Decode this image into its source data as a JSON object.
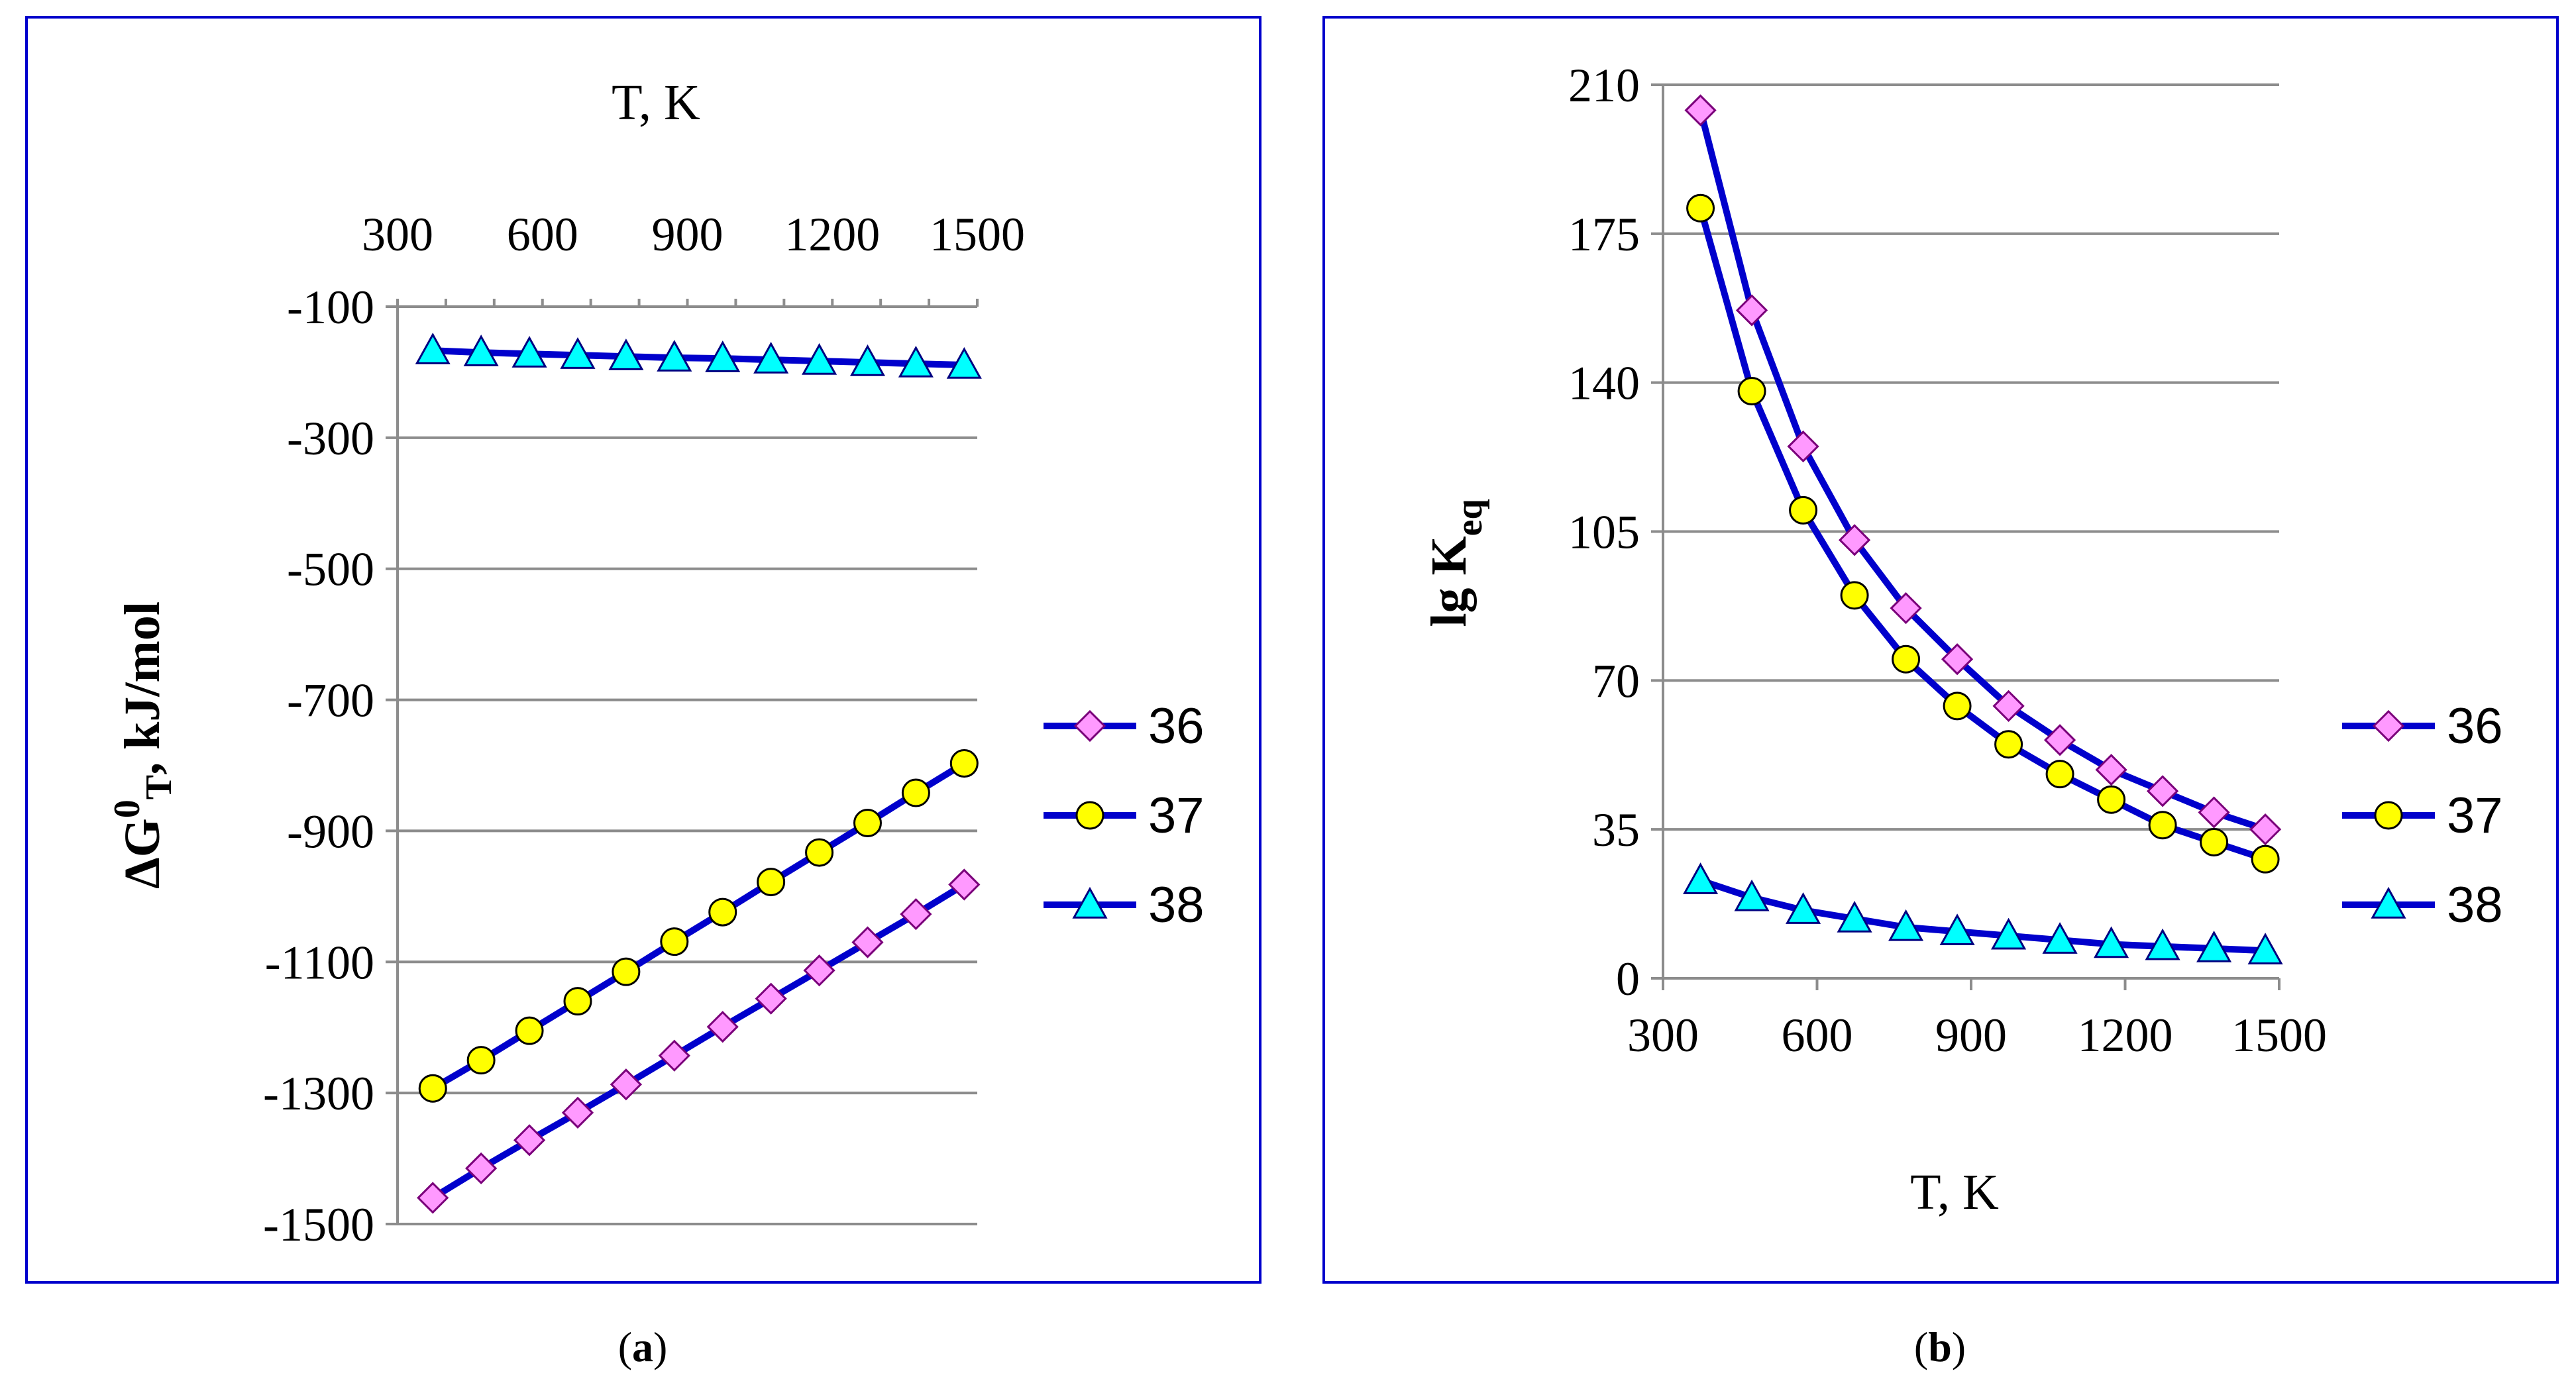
{
  "chart_data": [
    {
      "type": "line",
      "panel": "a",
      "caption_prefix": "(",
      "caption_letter": "a",
      "caption_suffix": ")",
      "xlabel": "T, K",
      "ylabel_main": "ΔG",
      "ylabel_sup": "0",
      "ylabel_sub": "T",
      "ylabel_tail": ", kJ/mol",
      "x_axis_position": "top",
      "xlim": [
        300,
        1500
      ],
      "ylim": [
        -1500,
        -100
      ],
      "x_ticks": [
        300,
        600,
        900,
        1200,
        1500
      ],
      "y_ticks": [
        -100,
        -300,
        -500,
        -700,
        -900,
        -1100,
        -1300,
        -1500
      ],
      "x": [
        373,
        473,
        573,
        673,
        773,
        873,
        973,
        1073,
        1173,
        1273,
        1373,
        1473
      ],
      "series": [
        {
          "name": "36",
          "marker": "diamond",
          "values": [
            -1460,
            -1415,
            -1372,
            -1330,
            -1287,
            -1243,
            -1199,
            -1156,
            -1113,
            -1070,
            -1027,
            -982
          ]
        },
        {
          "name": "37",
          "marker": "circle",
          "values": [
            -1293,
            -1250,
            -1205,
            -1160,
            -1115,
            -1069,
            -1024,
            -978,
            -933,
            -888,
            -842,
            -797
          ]
        },
        {
          "name": "38",
          "marker": "triangle",
          "values": [
            -167,
            -170,
            -172,
            -174,
            -176,
            -178,
            -179,
            -181,
            -183,
            -185,
            -187,
            -189
          ]
        }
      ]
    },
    {
      "type": "line",
      "panel": "b",
      "caption_prefix": "(",
      "caption_letter": "b",
      "caption_suffix": ")",
      "xlabel": "T, K",
      "ylabel_main": "lg K",
      "ylabel_sub": "eq",
      "x_axis_position": "bottom",
      "xlim": [
        300,
        1500
      ],
      "ylim": [
        0,
        210
      ],
      "x_ticks": [
        300,
        600,
        900,
        1200,
        1500
      ],
      "y_ticks": [
        0,
        35,
        70,
        105,
        140,
        175,
        210
      ],
      "x": [
        373,
        473,
        573,
        673,
        773,
        873,
        973,
        1073,
        1173,
        1273,
        1373,
        1473
      ],
      "series": [
        {
          "name": "36",
          "marker": "diamond",
          "values": [
            204,
            157,
            125,
            103,
            87,
            75,
            64,
            56,
            49,
            44,
            39,
            35
          ]
        },
        {
          "name": "37",
          "marker": "circle",
          "values": [
            181,
            138,
            110,
            90,
            75,
            64,
            55,
            48,
            42,
            36,
            32,
            28
          ]
        },
        {
          "name": "38",
          "marker": "triangle",
          "values": [
            23,
            19,
            16,
            14,
            12,
            11,
            10,
            9,
            8,
            7.5,
            7,
            6.5
          ]
        }
      ]
    }
  ]
}
